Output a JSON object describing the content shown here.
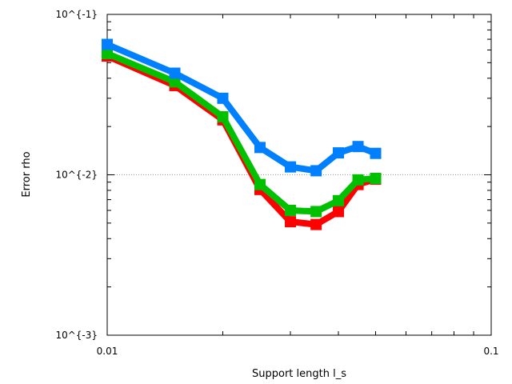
{
  "chart_data": {
    "type": "line",
    "xlabel": "Support length l_s",
    "ylabel": "Error rho",
    "x_scale": "log",
    "y_scale": "log",
    "xlim": [
      0.01,
      0.1
    ],
    "ylim": [
      0.001,
      0.1
    ],
    "x_ticks": [
      {
        "value": 0.01,
        "label": "0.01"
      },
      {
        "value": 0.1,
        "label": "0.1"
      }
    ],
    "y_ticks": [
      {
        "value": 0.001,
        "label": "10^{-3}"
      },
      {
        "value": 0.01,
        "label": "10^{-2}"
      },
      {
        "value": 0.1,
        "label": "10^{-1}"
      }
    ],
    "grid": "dotted line at y = 10^{-2}",
    "marker": "square",
    "series": [
      {
        "color": "#ff0000",
        "x": [
          0.01,
          0.015,
          0.02,
          0.025,
          0.03,
          0.035,
          0.04,
          0.045,
          0.05
        ],
        "y": [
          0.055,
          0.036,
          0.022,
          0.0081,
          0.0051,
          0.0049,
          0.0059,
          0.0087,
          0.0094
        ]
      },
      {
        "color": "#00c000",
        "x": [
          0.01,
          0.015,
          0.02,
          0.025,
          0.03,
          0.035,
          0.04,
          0.045,
          0.05
        ],
        "y": [
          0.057,
          0.038,
          0.023,
          0.0087,
          0.006,
          0.0059,
          0.0069,
          0.0093,
          0.0095
        ]
      },
      {
        "color": "#0080ff",
        "x": [
          0.01,
          0.015,
          0.02,
          0.025,
          0.03,
          0.035,
          0.04,
          0.045,
          0.05
        ],
        "y": [
          0.065,
          0.043,
          0.03,
          0.0148,
          0.0112,
          0.0106,
          0.0137,
          0.015,
          0.0136
        ]
      }
    ]
  }
}
